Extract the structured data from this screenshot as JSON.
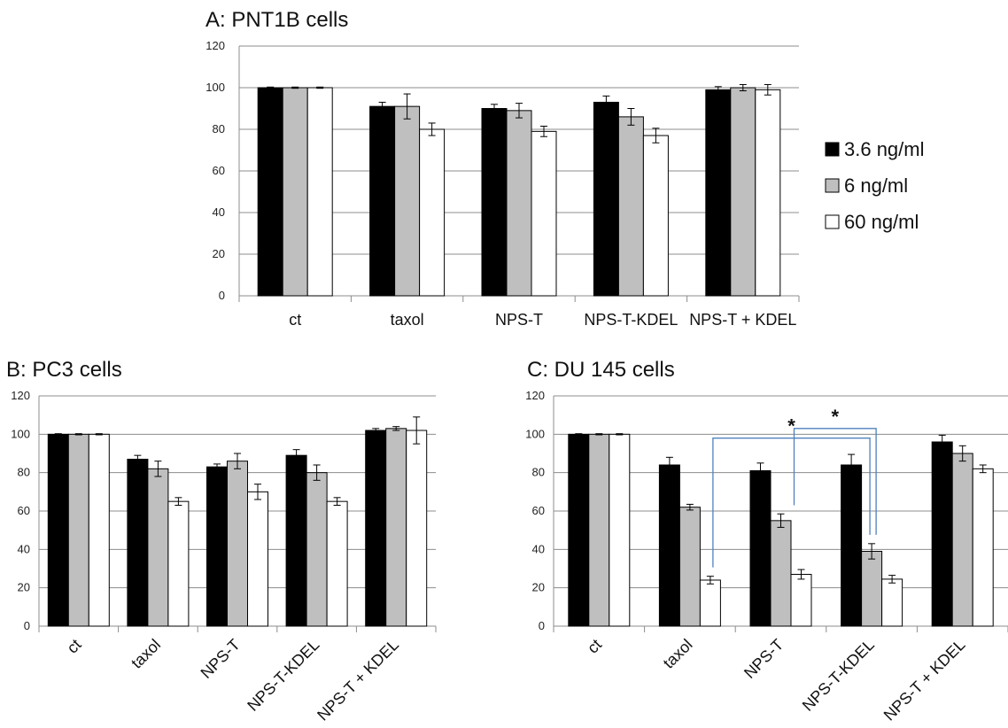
{
  "colors": {
    "s1": "#000000",
    "s2": "#bfbfbf",
    "s3": "#ffffff",
    "bracket": "#4f81bd",
    "grid": "#8c8c8c"
  },
  "legend": {
    "items": [
      "3.6 ng/ml",
      "6 ng/ml",
      "60 ng/ml"
    ],
    "placement": "right of chart A"
  },
  "chart_data": [
    {
      "type": "bar",
      "title": "A: PNT1B cells",
      "categories": [
        "ct",
        "taxol",
        "NPS-T",
        "NPS-T-KDEL",
        "NPS-T + KDEL"
      ],
      "yticks": [
        "0",
        "20",
        "40",
        "60",
        "80",
        "100",
        "120"
      ],
      "ylim": [
        0,
        120
      ],
      "grid": true,
      "series": [
        {
          "name": "3.6 ng/ml",
          "values": [
            100,
            91,
            90,
            93,
            99
          ],
          "errors": [
            0.3,
            2,
            2,
            3,
            1.5
          ]
        },
        {
          "name": "6 ng/ml",
          "values": [
            100,
            91,
            89,
            86,
            100
          ],
          "errors": [
            0.3,
            6,
            3.5,
            4,
            1.5
          ]
        },
        {
          "name": "60 ng/ml",
          "values": [
            100,
            80,
            79,
            77,
            99
          ],
          "errors": [
            0.3,
            3,
            2.5,
            3.5,
            2.5
          ]
        }
      ]
    },
    {
      "type": "bar",
      "title": "B: PC3 cells",
      "categories": [
        "ct",
        "taxol",
        "NPS-T",
        "NPS-T-KDEL",
        "NPS-T + KDEL"
      ],
      "yticks": [
        "0",
        "20",
        "40",
        "60",
        "80",
        "100",
        "120"
      ],
      "ylim": [
        0,
        120
      ],
      "grid": true,
      "series": [
        {
          "name": "3.6 ng/ml",
          "values": [
            100,
            87,
            83,
            89,
            102
          ],
          "errors": [
            0.3,
            2,
            1.5,
            3,
            1
          ]
        },
        {
          "name": "6 ng/ml",
          "values": [
            100,
            82,
            86,
            80,
            103
          ],
          "errors": [
            0.3,
            4,
            4,
            4,
            1
          ]
        },
        {
          "name": "60 ng/ml",
          "values": [
            100,
            65,
            70,
            65,
            102
          ],
          "errors": [
            0.3,
            2,
            4,
            2,
            7
          ]
        }
      ]
    },
    {
      "type": "bar",
      "title": "C: DU 145 cells",
      "categories": [
        "ct",
        "taxol",
        "NPS-T",
        "NPS-T-KDEL",
        "NPS-T + KDEL"
      ],
      "yticks": [
        "0",
        "20",
        "40",
        "60",
        "80",
        "100",
        "120"
      ],
      "ylim": [
        0,
        120
      ],
      "grid": true,
      "series": [
        {
          "name": "3.6 ng/ml",
          "values": [
            100,
            84,
            81,
            84,
            96
          ],
          "errors": [
            0.3,
            4,
            4,
            5.5,
            3.5
          ]
        },
        {
          "name": "6 ng/ml",
          "values": [
            100,
            62,
            55,
            39,
            90
          ],
          "errors": [
            0.3,
            1.5,
            3.5,
            4,
            4
          ]
        },
        {
          "name": "60 ng/ml",
          "values": [
            100,
            24,
            27,
            24.5,
            82
          ],
          "errors": [
            0.3,
            2,
            2.5,
            2,
            2
          ]
        }
      ],
      "annotations": [
        {
          "label": "*",
          "from": "taxol / 60 ng/ml",
          "to": "NPS-T-KDEL / 6 ng/ml"
        },
        {
          "label": "*",
          "from": "NPS-T / 60 ng/ml",
          "to": "NPS-T-KDEL / 6 ng/ml"
        }
      ]
    }
  ]
}
